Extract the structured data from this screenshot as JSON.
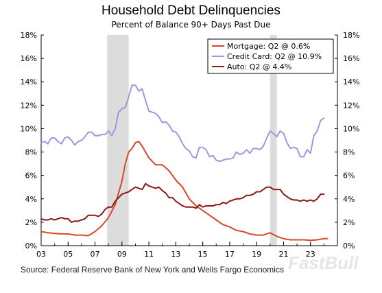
{
  "chart_data": {
    "type": "line",
    "title": "Household Debt Delinquencies",
    "subtitle": "Percent of Balance 90+ Days Past Due",
    "source": "Source: Federal Reserve Bank of New York and Wells Fargo Economics",
    "watermark": "FastBull",
    "xlim": [
      2003,
      2025
    ],
    "ylim": [
      0,
      18
    ],
    "x_ticks": [
      {
        "x": 2003,
        "label": "03"
      },
      {
        "x": 2005,
        "label": "05"
      },
      {
        "x": 2007,
        "label": "07"
      },
      {
        "x": 2009,
        "label": "09"
      },
      {
        "x": 2011,
        "label": "11"
      },
      {
        "x": 2013,
        "label": "13"
      },
      {
        "x": 2015,
        "label": "15"
      },
      {
        "x": 2017,
        "label": "17"
      },
      {
        "x": 2019,
        "label": "19"
      },
      {
        "x": 2021,
        "label": "21"
      },
      {
        "x": 2023,
        "label": "23"
      }
    ],
    "y_ticks": [
      {
        "y": 0,
        "label": "0%"
      },
      {
        "y": 2,
        "label": "2%"
      },
      {
        "y": 4,
        "label": "4%"
      },
      {
        "y": 6,
        "label": "6%"
      },
      {
        "y": 8,
        "label": "8%"
      },
      {
        "y": 10,
        "label": "10%"
      },
      {
        "y": 12,
        "label": "12%"
      },
      {
        "y": 14,
        "label": "14%"
      },
      {
        "y": 16,
        "label": "16%"
      },
      {
        "y": 18,
        "label": "18%"
      }
    ],
    "recessions": [
      {
        "start": 2007.9,
        "end": 2009.5
      },
      {
        "start": 2020.0,
        "end": 2020.5
      }
    ],
    "legend_position": "top-right",
    "series": [
      {
        "name": "Mortgage: Q2 @ 0.6%",
        "color": "#d9452b",
        "points": [
          [
            2003.0,
            1.2
          ],
          [
            2003.5,
            1.1
          ],
          [
            2004.0,
            1.05
          ],
          [
            2004.5,
            1.0
          ],
          [
            2005.0,
            1.0
          ],
          [
            2005.5,
            0.9
          ],
          [
            2006.0,
            0.9
          ],
          [
            2006.5,
            0.85
          ],
          [
            2007.0,
            1.2
          ],
          [
            2007.5,
            1.7
          ],
          [
            2008.0,
            2.4
          ],
          [
            2008.5,
            3.5
          ],
          [
            2009.0,
            5.5
          ],
          [
            2009.25,
            7.0
          ],
          [
            2009.5,
            8.0
          ],
          [
            2009.75,
            8.3
          ],
          [
            2010.0,
            8.8
          ],
          [
            2010.25,
            8.9
          ],
          [
            2010.5,
            8.5
          ],
          [
            2010.75,
            8.0
          ],
          [
            2011.0,
            7.5
          ],
          [
            2011.5,
            6.9
          ],
          [
            2012.0,
            6.9
          ],
          [
            2012.5,
            6.4
          ],
          [
            2013.0,
            5.6
          ],
          [
            2013.5,
            5.0
          ],
          [
            2014.0,
            4.0
          ],
          [
            2014.5,
            3.4
          ],
          [
            2015.0,
            3.0
          ],
          [
            2015.5,
            2.6
          ],
          [
            2016.0,
            2.2
          ],
          [
            2016.5,
            1.8
          ],
          [
            2017.0,
            1.6
          ],
          [
            2017.5,
            1.3
          ],
          [
            2018.0,
            1.2
          ],
          [
            2018.5,
            1.0
          ],
          [
            2019.0,
            0.9
          ],
          [
            2019.5,
            0.9
          ],
          [
            2020.0,
            1.1
          ],
          [
            2020.5,
            0.8
          ],
          [
            2021.0,
            0.6
          ],
          [
            2021.5,
            0.5
          ],
          [
            2022.0,
            0.5
          ],
          [
            2022.5,
            0.5
          ],
          [
            2023.0,
            0.45
          ],
          [
            2023.5,
            0.5
          ],
          [
            2024.0,
            0.6
          ],
          [
            2024.25,
            0.6
          ]
        ]
      },
      {
        "name": "Credit Card: Q2 @ 10.9%",
        "color": "#9999dd",
        "points": [
          [
            2003.0,
            8.8
          ],
          [
            2003.25,
            8.9
          ],
          [
            2003.5,
            8.7
          ],
          [
            2003.75,
            9.2
          ],
          [
            2004.0,
            9.2
          ],
          [
            2004.25,
            8.9
          ],
          [
            2004.5,
            8.7
          ],
          [
            2004.75,
            9.2
          ],
          [
            2005.0,
            9.3
          ],
          [
            2005.25,
            9.0
          ],
          [
            2005.5,
            8.6
          ],
          [
            2005.75,
            8.9
          ],
          [
            2006.0,
            9.0
          ],
          [
            2006.25,
            9.3
          ],
          [
            2006.5,
            9.7
          ],
          [
            2006.75,
            9.7
          ],
          [
            2007.0,
            9.4
          ],
          [
            2007.25,
            9.4
          ],
          [
            2007.5,
            9.5
          ],
          [
            2007.75,
            9.5
          ],
          [
            2008.0,
            9.8
          ],
          [
            2008.25,
            9.4
          ],
          [
            2008.5,
            10.0
          ],
          [
            2008.75,
            11.4
          ],
          [
            2009.0,
            11.7
          ],
          [
            2009.25,
            11.8
          ],
          [
            2009.5,
            12.7
          ],
          [
            2009.75,
            13.7
          ],
          [
            2010.0,
            13.7
          ],
          [
            2010.25,
            13.2
          ],
          [
            2010.5,
            13.4
          ],
          [
            2010.75,
            12.4
          ],
          [
            2011.0,
            11.5
          ],
          [
            2011.25,
            11.4
          ],
          [
            2011.5,
            11.3
          ],
          [
            2011.75,
            11.0
          ],
          [
            2012.0,
            10.5
          ],
          [
            2012.25,
            10.6
          ],
          [
            2012.5,
            10.3
          ],
          [
            2012.75,
            9.8
          ],
          [
            2013.0,
            9.7
          ],
          [
            2013.25,
            9.3
          ],
          [
            2013.5,
            8.7
          ],
          [
            2013.75,
            8.3
          ],
          [
            2014.0,
            8.1
          ],
          [
            2014.25,
            7.6
          ],
          [
            2014.5,
            7.5
          ],
          [
            2014.75,
            8.4
          ],
          [
            2015.0,
            8.4
          ],
          [
            2015.25,
            8.2
          ],
          [
            2015.5,
            7.6
          ],
          [
            2015.75,
            7.7
          ],
          [
            2016.0,
            7.3
          ],
          [
            2016.25,
            7.2
          ],
          [
            2016.5,
            7.3
          ],
          [
            2016.75,
            7.4
          ],
          [
            2017.0,
            7.4
          ],
          [
            2017.25,
            7.5
          ],
          [
            2017.5,
            8.0
          ],
          [
            2017.75,
            7.8
          ],
          [
            2018.0,
            7.9
          ],
          [
            2018.25,
            8.2
          ],
          [
            2018.5,
            7.9
          ],
          [
            2018.75,
            8.3
          ],
          [
            2019.0,
            8.3
          ],
          [
            2019.25,
            8.2
          ],
          [
            2019.5,
            8.5
          ],
          [
            2019.75,
            9.2
          ],
          [
            2020.0,
            9.8
          ],
          [
            2020.25,
            9.6
          ],
          [
            2020.5,
            9.3
          ],
          [
            2020.75,
            9.8
          ],
          [
            2021.0,
            9.6
          ],
          [
            2021.25,
            8.8
          ],
          [
            2021.5,
            8.3
          ],
          [
            2021.75,
            8.4
          ],
          [
            2022.0,
            8.3
          ],
          [
            2022.25,
            7.6
          ],
          [
            2022.5,
            7.6
          ],
          [
            2022.75,
            8.2
          ],
          [
            2023.0,
            7.9
          ],
          [
            2023.25,
            9.4
          ],
          [
            2023.5,
            9.8
          ],
          [
            2023.75,
            10.7
          ],
          [
            2024.0,
            10.9
          ]
        ]
      },
      {
        "name": "Auto: Q2 @ 4.4%",
        "color": "#8b1a10",
        "points": [
          [
            2003.0,
            2.3
          ],
          [
            2003.25,
            2.2
          ],
          [
            2003.5,
            2.2
          ],
          [
            2003.75,
            2.3
          ],
          [
            2004.0,
            2.2
          ],
          [
            2004.25,
            2.3
          ],
          [
            2004.5,
            2.4
          ],
          [
            2004.75,
            2.3
          ],
          [
            2005.0,
            2.3
          ],
          [
            2005.25,
            2.0
          ],
          [
            2005.5,
            2.1
          ],
          [
            2005.75,
            2.1
          ],
          [
            2006.0,
            2.2
          ],
          [
            2006.25,
            2.3
          ],
          [
            2006.5,
            2.6
          ],
          [
            2006.75,
            2.6
          ],
          [
            2007.0,
            2.6
          ],
          [
            2007.25,
            2.5
          ],
          [
            2007.5,
            2.7
          ],
          [
            2007.75,
            3.1
          ],
          [
            2008.0,
            3.3
          ],
          [
            2008.25,
            3.3
          ],
          [
            2008.5,
            3.8
          ],
          [
            2008.75,
            4.1
          ],
          [
            2009.0,
            4.4
          ],
          [
            2009.25,
            4.5
          ],
          [
            2009.5,
            4.6
          ],
          [
            2009.75,
            4.8
          ],
          [
            2010.0,
            5.0
          ],
          [
            2010.25,
            4.9
          ],
          [
            2010.5,
            4.8
          ],
          [
            2010.75,
            5.3
          ],
          [
            2011.0,
            5.1
          ],
          [
            2011.25,
            5.0
          ],
          [
            2011.5,
            4.9
          ],
          [
            2011.75,
            5.0
          ],
          [
            2012.0,
            4.7
          ],
          [
            2012.25,
            4.5
          ],
          [
            2012.5,
            4.1
          ],
          [
            2012.75,
            4.1
          ],
          [
            2013.0,
            3.8
          ],
          [
            2013.25,
            3.6
          ],
          [
            2013.5,
            3.4
          ],
          [
            2013.75,
            3.3
          ],
          [
            2014.0,
            3.3
          ],
          [
            2014.25,
            3.3
          ],
          [
            2014.5,
            3.2
          ],
          [
            2014.75,
            3.5
          ],
          [
            2015.0,
            3.3
          ],
          [
            2015.25,
            3.4
          ],
          [
            2015.5,
            3.4
          ],
          [
            2015.75,
            3.4
          ],
          [
            2016.0,
            3.5
          ],
          [
            2016.25,
            3.5
          ],
          [
            2016.5,
            3.7
          ],
          [
            2016.75,
            3.6
          ],
          [
            2017.0,
            3.8
          ],
          [
            2017.25,
            3.9
          ],
          [
            2017.5,
            4.0
          ],
          [
            2017.75,
            4.0
          ],
          [
            2018.0,
            4.1
          ],
          [
            2018.25,
            4.3
          ],
          [
            2018.5,
            4.3
          ],
          [
            2018.75,
            4.4
          ],
          [
            2019.0,
            4.6
          ],
          [
            2019.25,
            4.6
          ],
          [
            2019.5,
            4.8
          ],
          [
            2019.75,
            5.0
          ],
          [
            2020.0,
            5.0
          ],
          [
            2020.25,
            4.8
          ],
          [
            2020.5,
            4.8
          ],
          [
            2020.75,
            4.8
          ],
          [
            2021.0,
            4.4
          ],
          [
            2021.25,
            4.2
          ],
          [
            2021.5,
            4.0
          ],
          [
            2021.75,
            3.9
          ],
          [
            2022.0,
            3.9
          ],
          [
            2022.25,
            3.8
          ],
          [
            2022.5,
            3.9
          ],
          [
            2022.75,
            3.8
          ],
          [
            2023.0,
            3.9
          ],
          [
            2023.25,
            3.8
          ],
          [
            2023.5,
            4.0
          ],
          [
            2023.75,
            4.4
          ],
          [
            2024.0,
            4.4
          ]
        ]
      }
    ]
  }
}
